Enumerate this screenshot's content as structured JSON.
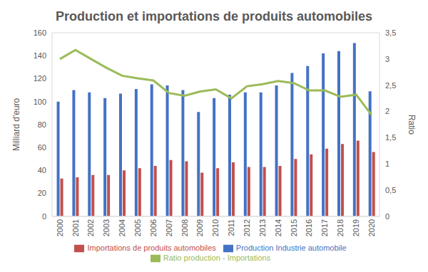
{
  "chart_data": {
    "type": "bar",
    "title": "Production et importations de produits automobiles",
    "categories": [
      "2000",
      "2001",
      "2002",
      "2003",
      "2004",
      "2005",
      "2006",
      "2007",
      "2008",
      "2009",
      "2010",
      "2011",
      "2012",
      "2013",
      "2014",
      "2015",
      "2016",
      "2017",
      "2018",
      "2019",
      "2020"
    ],
    "series": [
      {
        "name": "Production Industrie automobile",
        "type": "bar",
        "color": "#4472c4",
        "values": [
          100,
          110,
          108,
          103,
          107,
          111,
          115,
          114,
          110,
          91,
          103,
          106,
          108,
          108,
          114,
          125,
          131,
          142,
          144,
          151,
          109
        ]
      },
      {
        "name": "Importations de produits automobiles",
        "type": "bar",
        "color": "#c0504d",
        "values": [
          33,
          34,
          36,
          36,
          40,
          42,
          44,
          49,
          48,
          38,
          42,
          47,
          43,
          43,
          44,
          50,
          54,
          59,
          63,
          66,
          56
        ]
      },
      {
        "name": "Ratio production - Importations",
        "type": "line",
        "axis": "y2",
        "color": "#9bbb59",
        "values": [
          3.0,
          3.17,
          3.0,
          2.83,
          2.68,
          2.63,
          2.59,
          2.35,
          2.3,
          2.38,
          2.42,
          2.25,
          2.48,
          2.52,
          2.58,
          2.54,
          2.4,
          2.4,
          2.28,
          2.32,
          1.93
        ]
      }
    ],
    "y_label": "Milliard d'euro",
    "y2_label": "Ratio",
    "ylim": [
      0,
      160
    ],
    "yticks": [
      0,
      20,
      40,
      60,
      80,
      100,
      120,
      140,
      160
    ],
    "y2lim": [
      0,
      3.5
    ],
    "y2ticks": [
      0,
      {
        "value": 0.5,
        "label": "0,5"
      },
      1,
      {
        "value": 1.5,
        "label": "1,5"
      },
      2,
      {
        "value": 2.5,
        "label": "2,5"
      },
      3,
      {
        "value": 3.5,
        "label": "3,5"
      }
    ],
    "grid": true,
    "legend": "bottom"
  }
}
